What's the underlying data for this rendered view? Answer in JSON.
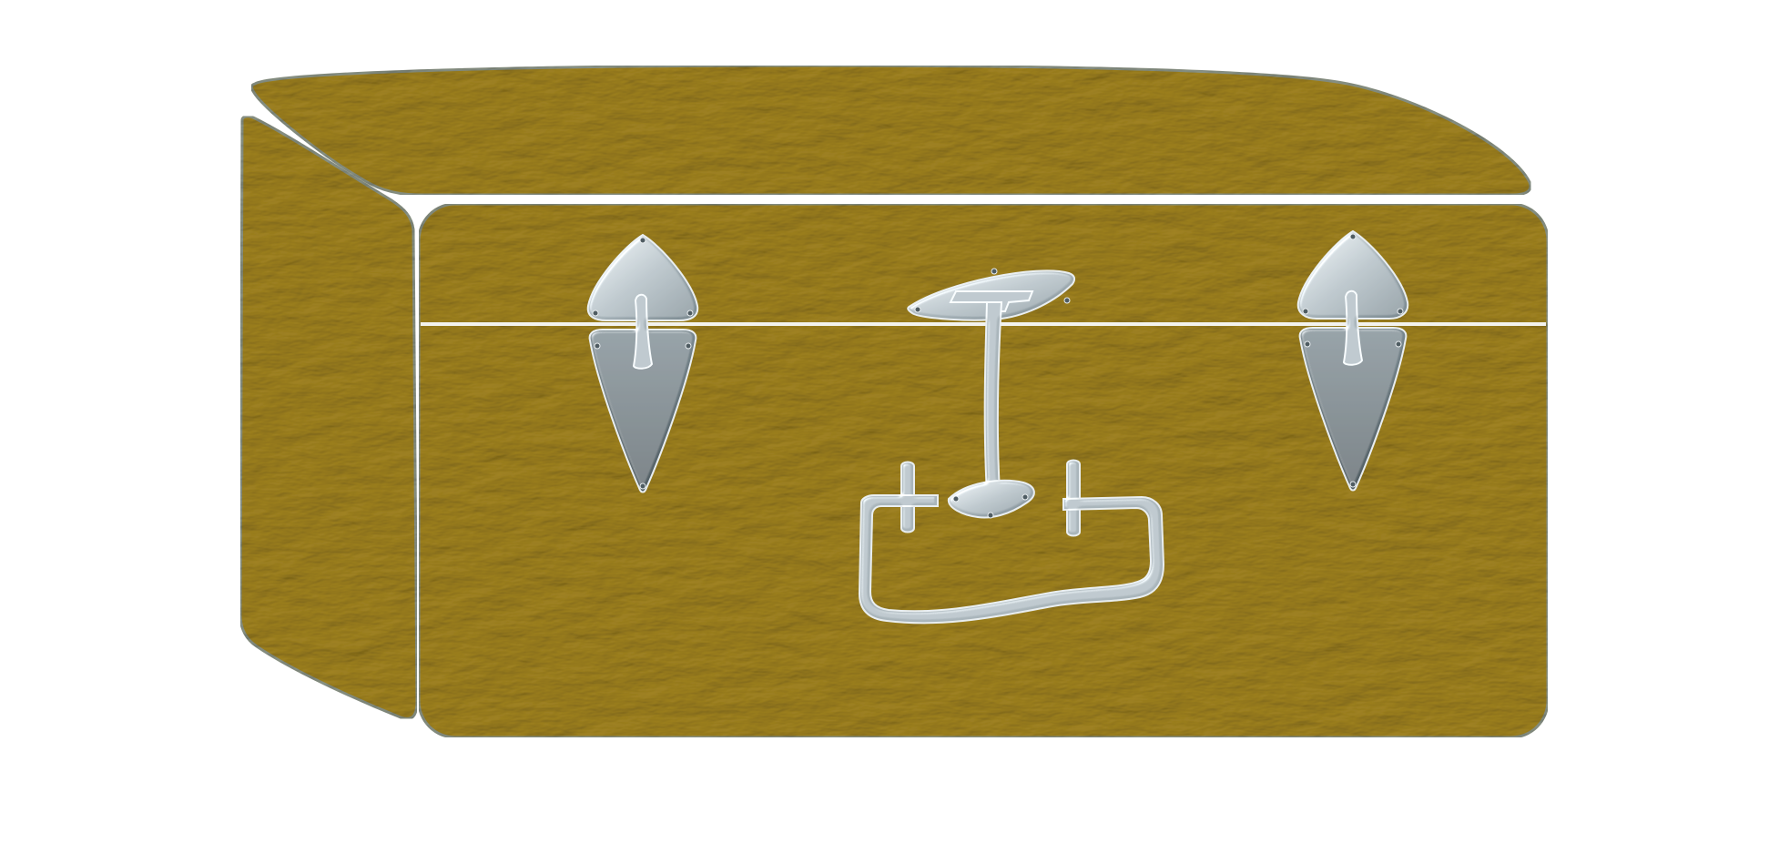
{
  "illustration": {
    "subject": "suitcase",
    "colors": {
      "background": "#ffffff",
      "leather_base": "#a38a2a",
      "leather_light": "#c2a94a",
      "leather_dark": "#7d6a1d",
      "outline": "#8c9ba3",
      "seam": "#f3f3ee",
      "metal_light": "#a9b5bb",
      "metal_mid": "#78878e",
      "metal_dark": "#4f5c62",
      "metal_highlight": "#e9eef0"
    },
    "parts": [
      "lid-top-panel",
      "side-panel",
      "front-panel",
      "lid-seam",
      "left-latch",
      "right-latch",
      "handle"
    ]
  }
}
